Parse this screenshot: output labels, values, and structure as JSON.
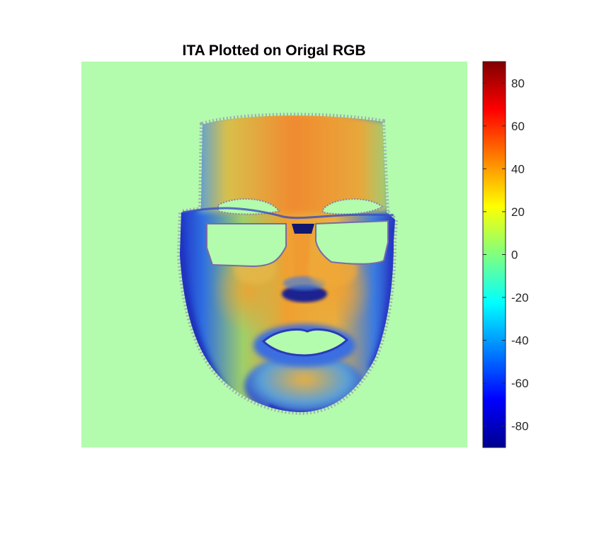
{
  "chart_data": {
    "type": "heatmap",
    "title": "ITA Plotted on Origal RGB",
    "image_description_kind": "face",
    "background_color": "#b3fbad",
    "colormap": "jet",
    "clim": [
      -90,
      90
    ],
    "colorbar": {
      "location": "right",
      "ticks": [
        80,
        60,
        40,
        20,
        0,
        -20,
        -40,
        -60,
        -80
      ],
      "tick_labels": [
        "80",
        "60",
        "40",
        "20",
        "0",
        "-20",
        "-40",
        "-60",
        "-80"
      ]
    },
    "axes_visible": false
  }
}
